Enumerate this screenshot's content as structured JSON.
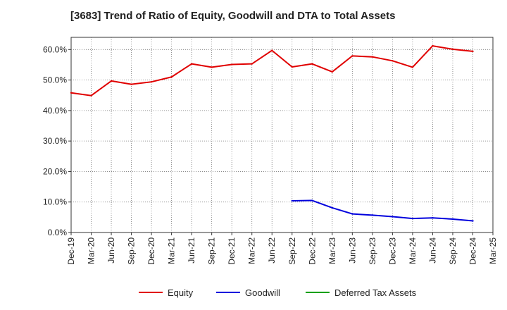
{
  "chart_data": {
    "type": "line",
    "title": "[3683]  Trend of Ratio of Equity, Goodwill and DTA to Total Assets",
    "xlabel": "",
    "ylabel": "",
    "ylim": [
      0,
      64
    ],
    "y_ticks": [
      "0.0%",
      "10.0%",
      "20.0%",
      "30.0%",
      "40.0%",
      "50.0%",
      "60.0%"
    ],
    "y_tick_values": [
      0,
      10,
      20,
      30,
      40,
      50,
      60
    ],
    "x_ticks": [
      "Dec-19",
      "Mar-20",
      "Jun-20",
      "Sep-20",
      "Dec-20",
      "Mar-21",
      "Jun-21",
      "Sep-21",
      "Dec-21",
      "Mar-22",
      "Jun-22",
      "Sep-22",
      "Dec-22",
      "Mar-23",
      "Jun-23",
      "Sep-23",
      "Dec-23",
      "Mar-24",
      "Jun-24",
      "Sep-24",
      "Dec-24",
      "Mar-25"
    ],
    "grid": true,
    "legend_position": "bottom",
    "series": [
      {
        "name": "Equity",
        "color": "#e00000",
        "values": [
          45.8,
          44.9,
          49.7,
          48.6,
          49.4,
          51.0,
          55.3,
          54.2,
          55.1,
          55.3,
          59.7,
          54.3,
          55.3,
          52.7,
          57.9,
          57.6,
          56.3,
          54.2,
          61.2,
          60.1,
          59.4,
          null
        ]
      },
      {
        "name": "Goodwill",
        "color": "#0000dd",
        "values": [
          null,
          null,
          null,
          null,
          null,
          null,
          null,
          null,
          null,
          null,
          null,
          10.4,
          10.5,
          8.1,
          6.1,
          5.7,
          5.2,
          4.6,
          4.8,
          4.4,
          3.8,
          null
        ]
      },
      {
        "name": "Deferred Tax Assets",
        "color": "#00a000",
        "values": [
          null,
          null,
          null,
          null,
          null,
          null,
          null,
          null,
          null,
          null,
          null,
          null,
          null,
          null,
          null,
          null,
          null,
          null,
          null,
          null,
          null,
          null
        ]
      }
    ]
  }
}
